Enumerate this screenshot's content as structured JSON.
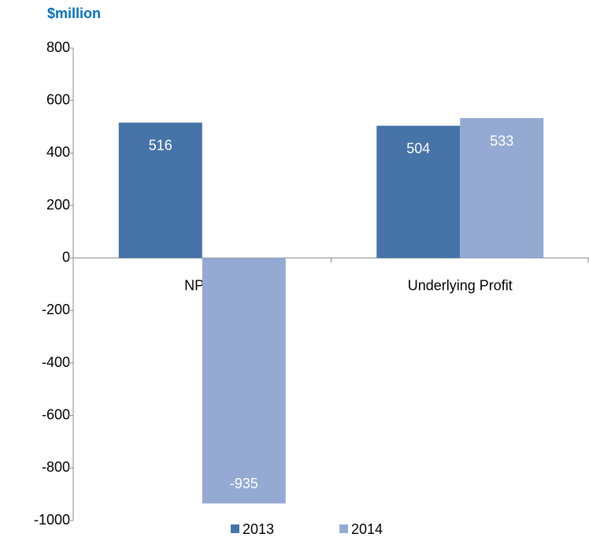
{
  "chart_data": {
    "type": "bar",
    "title": "$million",
    "categories": [
      "NPAT",
      "Underlying Profit"
    ],
    "series": [
      {
        "name": "2013",
        "color": "#4673a8",
        "values": [
          516,
          504
        ]
      },
      {
        "name": "2014",
        "color": "#94aad3",
        "values": [
          -935,
          533
        ]
      }
    ],
    "ylim": [
      -1000,
      800
    ],
    "yticks": [
      -1000,
      -800,
      -600,
      -400,
      -200,
      0,
      200,
      400,
      600,
      800
    ],
    "grid": false,
    "legend": "bottom"
  }
}
